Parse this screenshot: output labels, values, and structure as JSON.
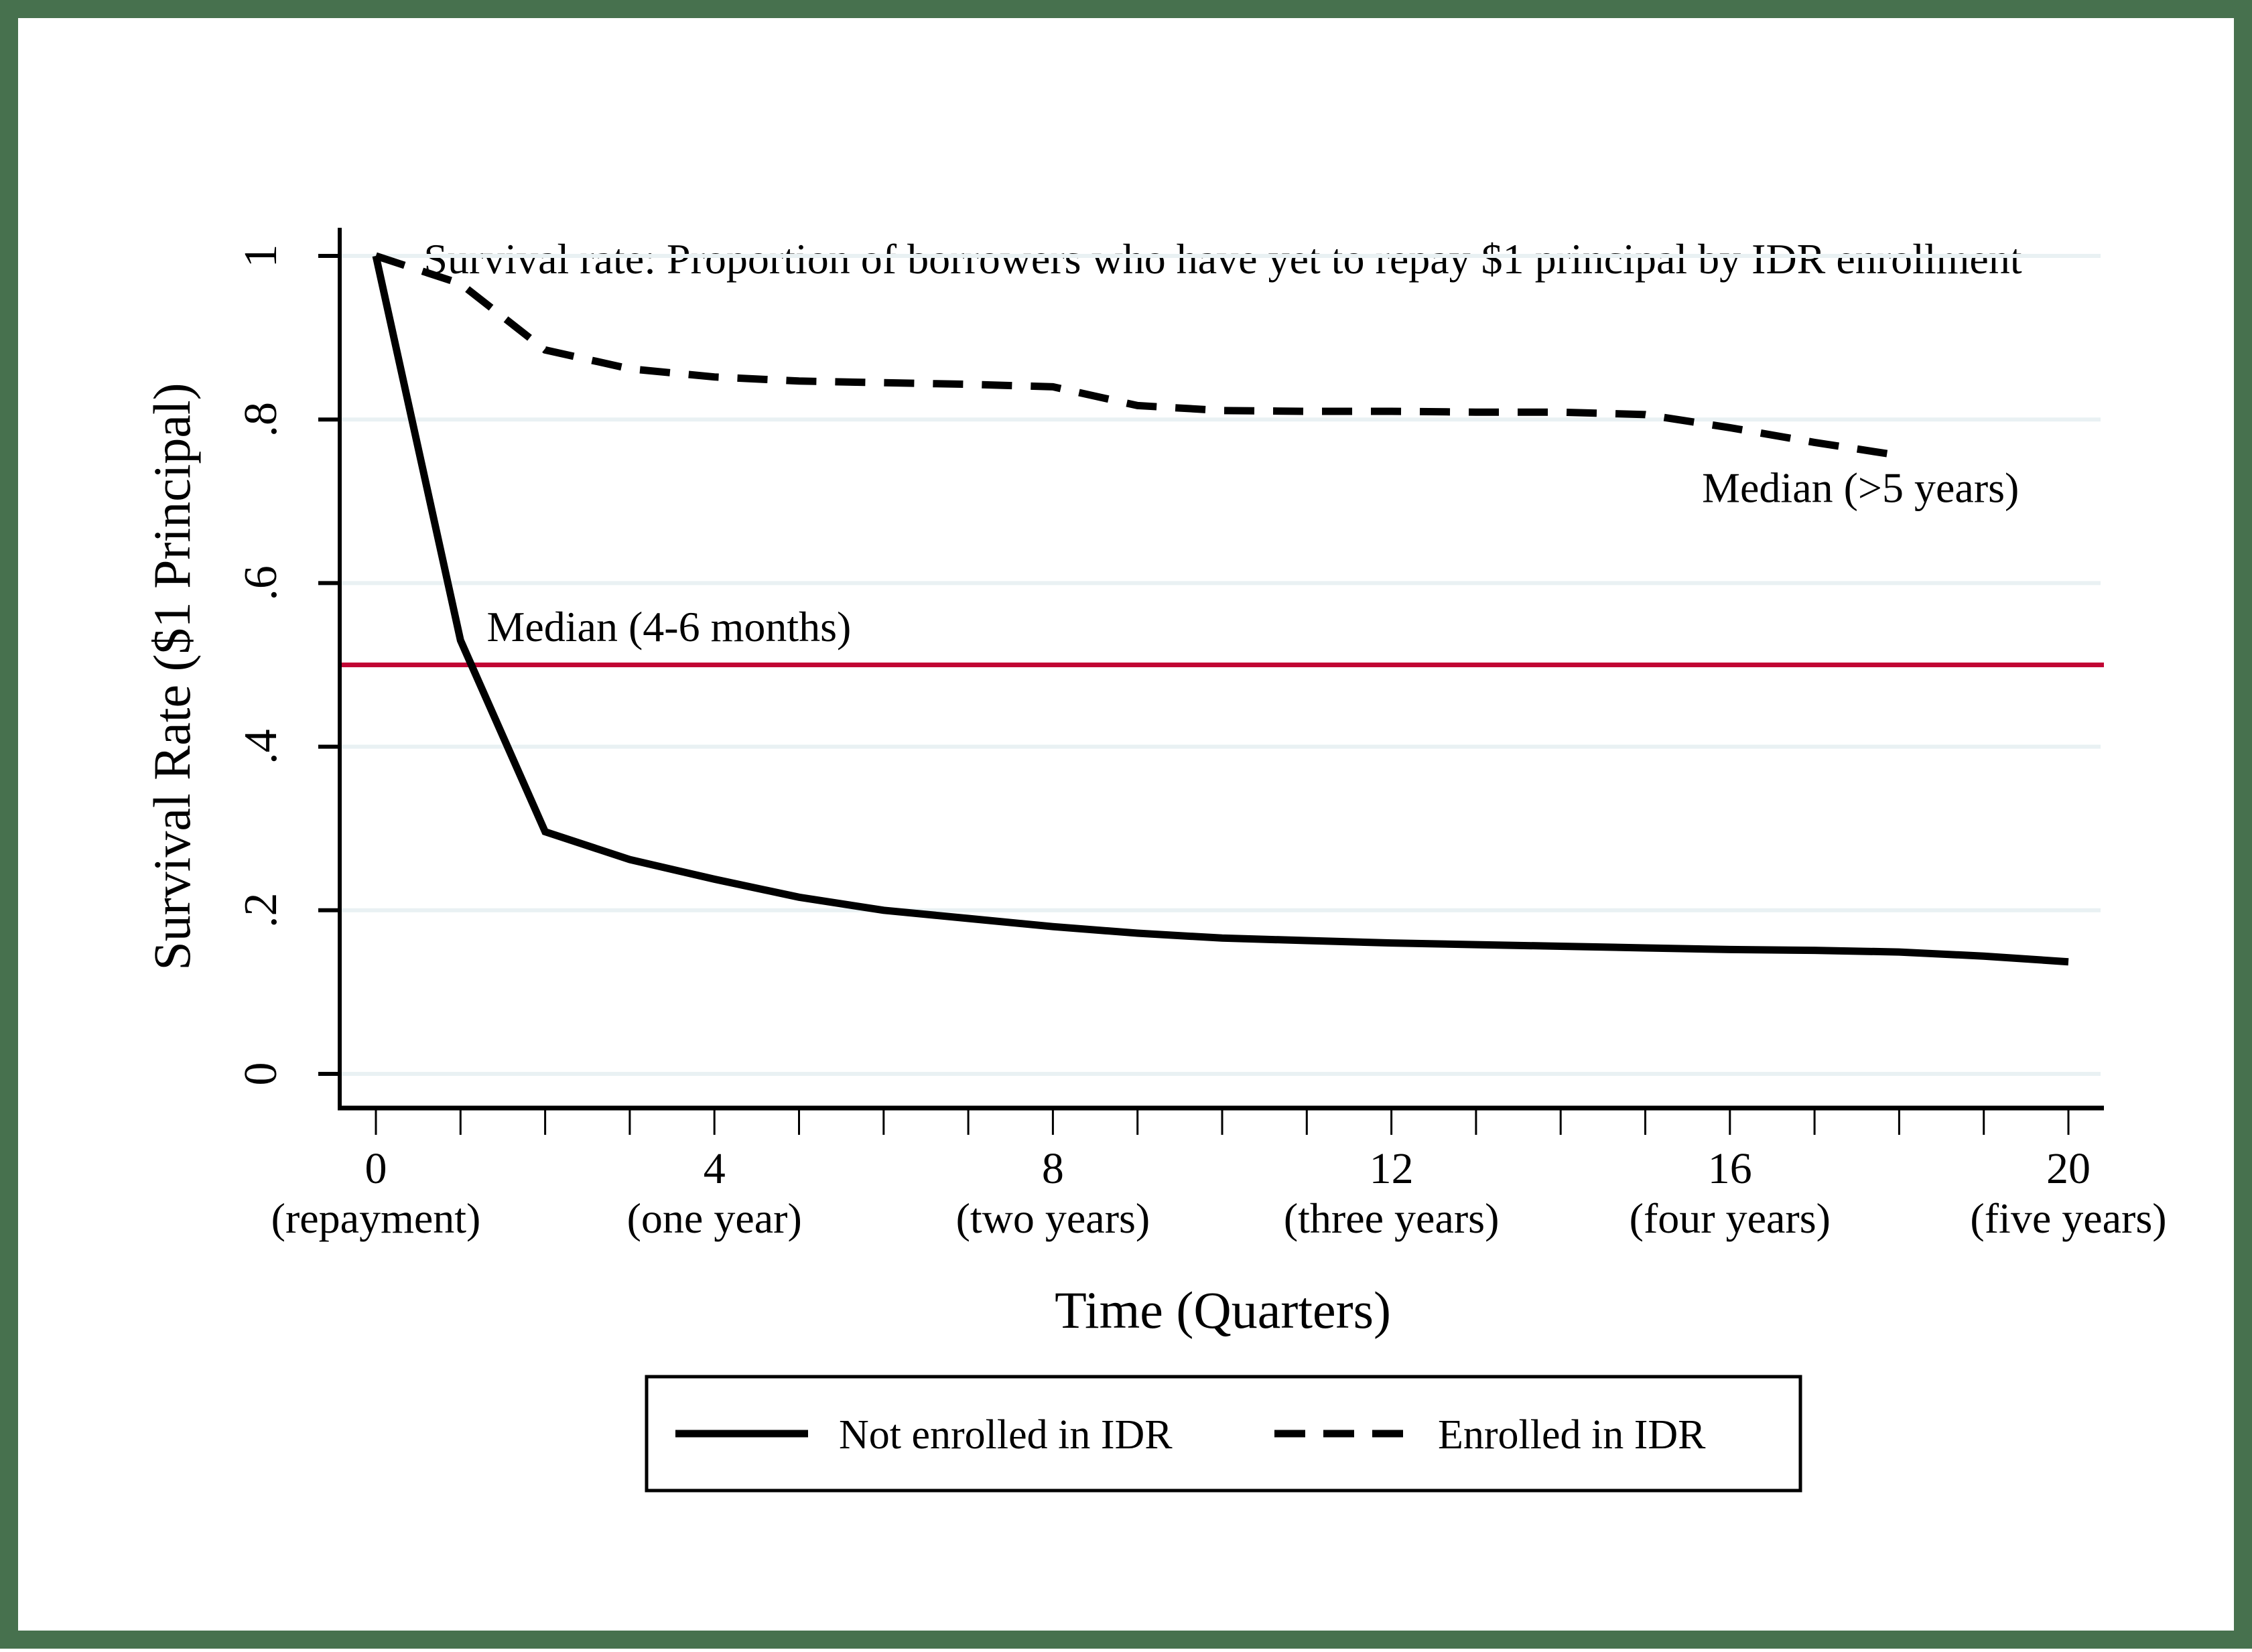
{
  "title": "Survival rate: Proportion of borrowers who have yet to repay $1 principal by IDR enrollment",
  "colors": {
    "frame_border": "#47714e",
    "background": "#ffffff",
    "gridline": "#e9f1f3",
    "reference_line": "#c10534",
    "series_line": "#000000"
  },
  "chart_data": {
    "type": "line",
    "title": "Survival rate: Proportion of borrowers who have yet to repay $1 principal by IDR enrollment",
    "xlabel": "Time (Quarters)",
    "ylabel": "Survival Rate ($1 Principal)",
    "xlim": [
      0,
      20
    ],
    "ylim": [
      0,
      1
    ],
    "grid": true,
    "y_ticks": [
      {
        "value": 1,
        "label": "1"
      },
      {
        "value": 0.8,
        "label": ".8"
      },
      {
        "value": 0.6,
        "label": ".6"
      },
      {
        "value": 0.4,
        "label": ".4"
      },
      {
        "value": 0.2,
        "label": ".2"
      },
      {
        "value": 0,
        "label": "0"
      }
    ],
    "x_minor_ticks": [
      0,
      1,
      2,
      3,
      4,
      5,
      6,
      7,
      8,
      9,
      10,
      11,
      12,
      13,
      14,
      15,
      16,
      17,
      18,
      19,
      20
    ],
    "x_ticks": [
      {
        "value": 0,
        "label": "0",
        "sublabel": "(repayment)"
      },
      {
        "value": 4,
        "label": "4",
        "sublabel": "(one year)"
      },
      {
        "value": 8,
        "label": "8",
        "sublabel": "(two years)"
      },
      {
        "value": 12,
        "label": "12",
        "sublabel": "(three years)"
      },
      {
        "value": 16,
        "label": "16",
        "sublabel": "(four years)"
      },
      {
        "value": 20,
        "label": "20",
        "sublabel": "(five years)"
      }
    ],
    "series": [
      {
        "name": "Not enrolled in IDR",
        "style": "solid",
        "color": "#000000",
        "x": [
          0,
          1,
          2,
          3,
          4,
          5,
          6,
          7,
          8,
          9,
          10,
          11,
          12,
          13,
          14,
          15,
          16,
          17,
          18,
          19,
          20
        ],
        "y": [
          1.0,
          0.53,
          0.296,
          0.262,
          0.238,
          0.216,
          0.2,
          0.19,
          0.18,
          0.172,
          0.166,
          0.163,
          0.16,
          0.158,
          0.156,
          0.154,
          0.152,
          0.151,
          0.149,
          0.144,
          0.137
        ]
      },
      {
        "name": "Enrolled in IDR",
        "style": "dashed",
        "color": "#000000",
        "x": [
          0,
          1,
          2,
          3,
          4,
          5,
          6,
          7,
          8,
          9,
          10,
          11,
          12,
          13,
          14,
          15,
          16,
          17,
          18
        ],
        "y": [
          1.0,
          0.966,
          0.885,
          0.862,
          0.852,
          0.847,
          0.845,
          0.843,
          0.84,
          0.817,
          0.811,
          0.81,
          0.81,
          0.809,
          0.809,
          0.806,
          0.79,
          0.772,
          0.756
        ]
      }
    ],
    "reference_line": {
      "y": 0.5,
      "color": "#c10534"
    },
    "annotations": [
      {
        "text": "Median (4-6 months)",
        "x": 1.31,
        "y": 0.529
      },
      {
        "text": "Median (>5 years)",
        "x": 15.67,
        "y": 0.699
      }
    ],
    "legend": {
      "position": "bottom-center",
      "entries": [
        "Not enrolled in IDR",
        "Enrolled in IDR"
      ]
    }
  }
}
